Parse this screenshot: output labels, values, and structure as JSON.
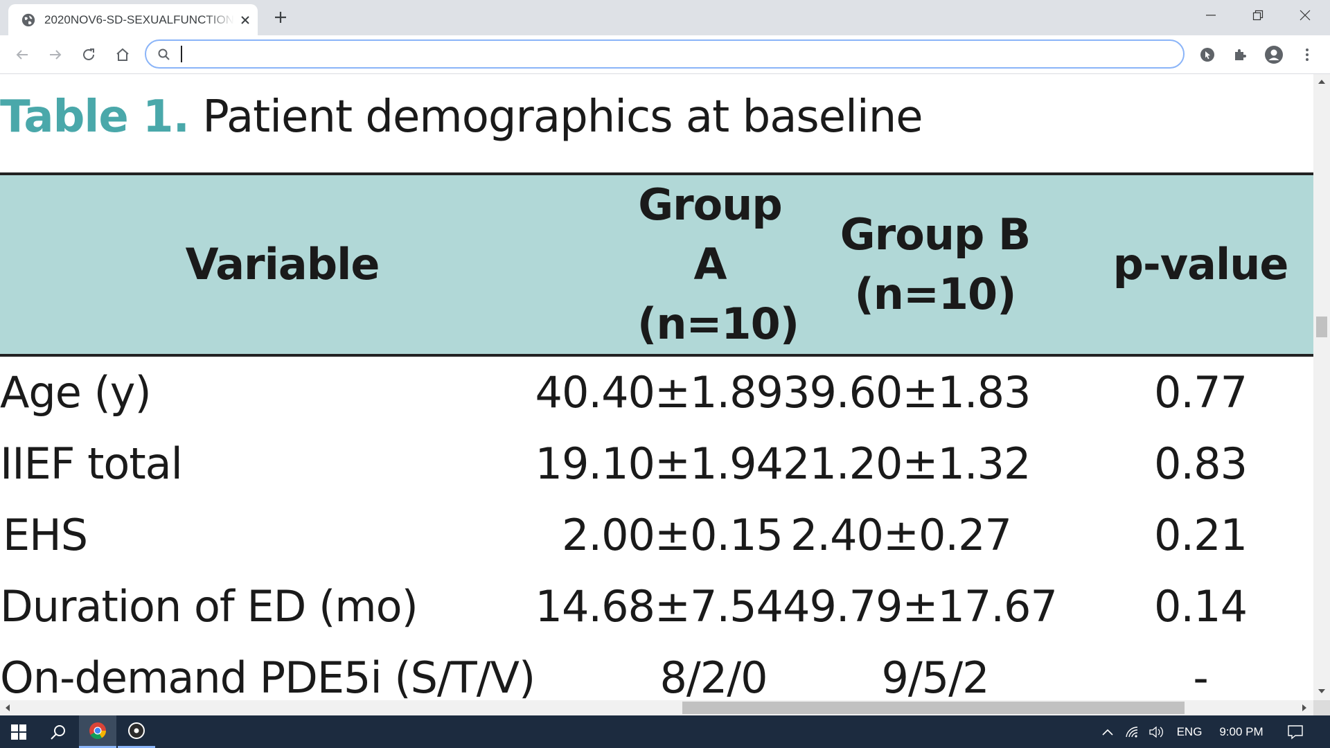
{
  "browser": {
    "tab_title": "2020NOV6-SD-SEXUALFUNCTION",
    "omnibox_value": "",
    "icons": [
      "globe-icon",
      "close-icon",
      "plus-icon",
      "back-icon",
      "forward-icon",
      "reload-icon",
      "home-icon",
      "search-icon",
      "extension-shortcut-icon",
      "puzzle-icon",
      "profile-icon",
      "menu-icon",
      "minimize-icon",
      "restore-icon",
      "window-close-icon"
    ]
  },
  "document": {
    "title_label": "Table 1.",
    "title_text": "Patient demographics at baseline",
    "table": {
      "headers": {
        "variable": "Variable",
        "group_a_line1": "Group A",
        "group_a_line2": "(n=10)",
        "group_b_line1": "Group B",
        "group_b_line2": "(n=10)",
        "p_value": "p-value"
      },
      "rows": [
        {
          "variable": "Age (y)",
          "group_a": "40.40±1.89",
          "group_b": "39.60±1.83",
          "p": "0.77"
        },
        {
          "variable": "IIEF total",
          "group_a": "19.10±1.94",
          "group_b": "21.20±1.32",
          "p": "0.83"
        },
        {
          "variable": "EHS",
          "group_a": "2.00±0.15",
          "group_b": "2.40±0.27",
          "p": "0.21"
        },
        {
          "variable": "Duration of ED (mo)",
          "group_a": "14.68±7.54",
          "group_b": "49.79±17.67",
          "p": "0.14"
        },
        {
          "variable": "On-demand PDE5i (S/T/V)",
          "group_a": "8/2/0",
          "group_b": "9/5/2",
          "p": "-"
        }
      ]
    },
    "colors": {
      "title_label": "#4aa8aa",
      "header_bg": "#b1d8d7"
    }
  },
  "taskbar": {
    "language": "ENG",
    "time": "9:00 PM"
  }
}
